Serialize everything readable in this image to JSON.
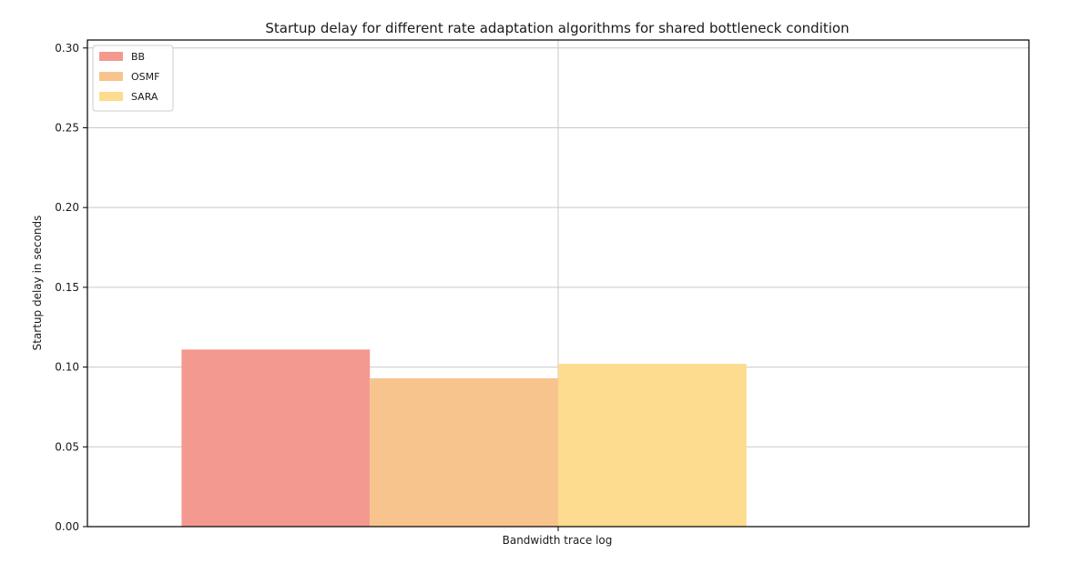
{
  "chart_data": {
    "type": "bar",
    "title": "Startup delay for different rate adaptation algorithms for shared bottleneck condition",
    "xlabel": "Bandwidth trace log",
    "ylabel": "Startup delay in seconds",
    "ylim": [
      0,
      0.305
    ],
    "yticks": [
      "0.00",
      "0.05",
      "0.10",
      "0.15",
      "0.20",
      "0.25",
      "0.30"
    ],
    "grid": true,
    "legend_position": "top-left",
    "categories": [
      ""
    ],
    "series": [
      {
        "name": "BB",
        "values": [
          0.111
        ],
        "color": "#f4998f"
      },
      {
        "name": "OSMF",
        "values": [
          0.093
        ],
        "color": "#f8c48e"
      },
      {
        "name": "SARA",
        "values": [
          0.102
        ],
        "color": "#fddc8f"
      }
    ]
  }
}
